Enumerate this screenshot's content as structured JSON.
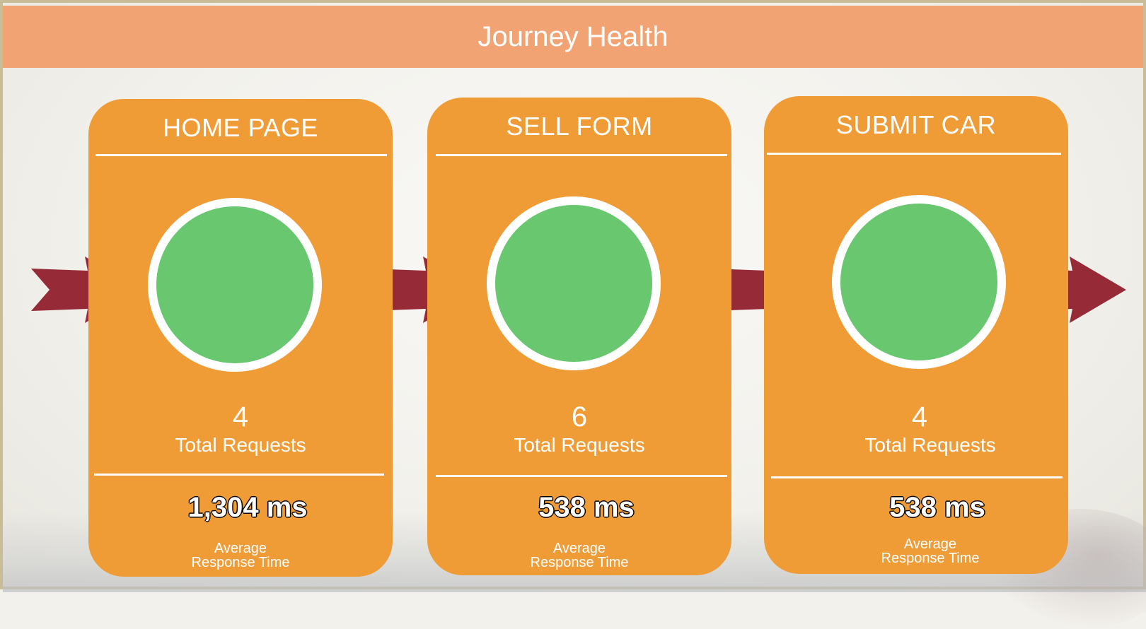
{
  "header": {
    "title": "Journey Health"
  },
  "colors": {
    "header": "#f1a374",
    "card": "#f09c36",
    "healthy": "#68c76f",
    "arrow": "#962a37"
  },
  "steps": [
    {
      "title": "HOME PAGE",
      "status": "healthy",
      "total_requests": "4",
      "total_requests_label": "Total Requests",
      "avg_response": "1,304 ms",
      "avg_response_label_1": "Average",
      "avg_response_label_2": "Response Time"
    },
    {
      "title": "SELL FORM",
      "status": "healthy",
      "total_requests": "6",
      "total_requests_label": "Total Requests",
      "avg_response": "538 ms",
      "avg_response_label_1": "Average",
      "avg_response_label_2": "Response Time"
    },
    {
      "title": "SUBMIT CAR",
      "status": "healthy",
      "total_requests": "4",
      "total_requests_label": "Total Requests",
      "avg_response": "538 ms",
      "avg_response_label_1": "Average",
      "avg_response_label_2": "Response Time"
    }
  ],
  "icons": {
    "flow": "arrow-right-icon"
  }
}
